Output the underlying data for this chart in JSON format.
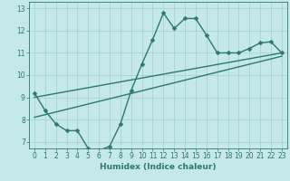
{
  "xlabel": "Humidex (Indice chaleur)",
  "ylabel": "",
  "background_color": "#c5e8e8",
  "grid_color": "#a8d4d4",
  "line_color": "#2a7a6a",
  "xlim": [
    -0.5,
    23.5
  ],
  "ylim": [
    6.7,
    13.3
  ],
  "yticks": [
    7,
    8,
    9,
    10,
    11,
    12,
    13
  ],
  "xticks": [
    0,
    1,
    2,
    3,
    4,
    5,
    6,
    7,
    8,
    9,
    10,
    11,
    12,
    13,
    14,
    15,
    16,
    17,
    18,
    19,
    20,
    21,
    22,
    23
  ],
  "curve_x": [
    0,
    1,
    2,
    3,
    4,
    5,
    6,
    7,
    8,
    9,
    10,
    11,
    12,
    13,
    14,
    15,
    16,
    17,
    18,
    19,
    20,
    21,
    22,
    23
  ],
  "curve_y": [
    9.2,
    8.4,
    7.8,
    7.5,
    7.5,
    6.7,
    6.6,
    6.8,
    7.8,
    9.3,
    10.5,
    11.6,
    12.8,
    12.1,
    12.55,
    12.55,
    11.8,
    11.0,
    11.0,
    11.0,
    11.2,
    11.45,
    11.5,
    11.0
  ],
  "line1_x": [
    0,
    23
  ],
  "line1_y": [
    9.0,
    11.0
  ],
  "line2_x": [
    0,
    23
  ],
  "line2_y": [
    8.1,
    10.85
  ],
  "marker_size": 2.5,
  "line_width": 1.0
}
